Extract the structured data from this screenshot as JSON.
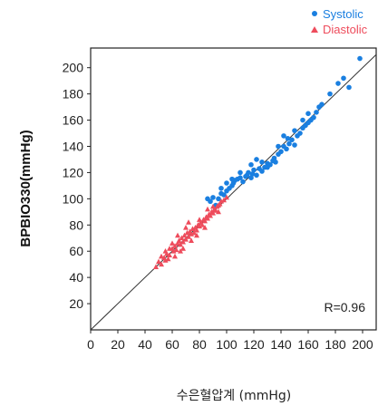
{
  "chart_data": {
    "type": "scatter",
    "xlabel": "수은혈압계 (mmHg)",
    "ylabel": "BPBIO330(mmHg)",
    "xlim": [
      0,
      210
    ],
    "ylim": [
      0,
      215
    ],
    "x_ticks": [
      "0",
      "20",
      "40",
      "60",
      "80",
      "100",
      "120",
      "140",
      "160",
      "180",
      "200"
    ],
    "y_ticks": [
      "20",
      "40",
      "60",
      "80",
      "100",
      "120",
      "140",
      "160",
      "180",
      "200"
    ],
    "annotation": "R=0.96",
    "identity_line": true,
    "grid": false,
    "legend_position": "top-right",
    "series": [
      {
        "name": "Systolic",
        "marker": "circle",
        "color": "#1a7fe0",
        "points": [
          [
            86,
            100
          ],
          [
            88,
            98
          ],
          [
            90,
            101
          ],
          [
            92,
            95
          ],
          [
            94,
            100
          ],
          [
            96,
            104
          ],
          [
            98,
            103
          ],
          [
            100,
            106
          ],
          [
            102,
            108
          ],
          [
            104,
            110
          ],
          [
            105,
            112
          ],
          [
            106,
            114
          ],
          [
            108,
            115
          ],
          [
            110,
            116
          ],
          [
            112,
            113
          ],
          [
            114,
            117
          ],
          [
            115,
            118
          ],
          [
            116,
            120
          ],
          [
            118,
            116
          ],
          [
            119,
            119
          ],
          [
            120,
            122
          ],
          [
            122,
            118
          ],
          [
            124,
            123
          ],
          [
            126,
            121
          ],
          [
            128,
            124
          ],
          [
            130,
            127
          ],
          [
            132,
            126
          ],
          [
            134,
            129
          ],
          [
            135,
            131
          ],
          [
            136,
            128
          ],
          [
            138,
            134
          ],
          [
            140,
            136
          ],
          [
            142,
            140
          ],
          [
            144,
            138
          ],
          [
            146,
            142
          ],
          [
            148,
            145
          ],
          [
            150,
            141
          ],
          [
            152,
            148
          ],
          [
            154,
            150
          ],
          [
            156,
            154
          ],
          [
            158,
            156
          ],
          [
            160,
            158
          ],
          [
            162,
            160
          ],
          [
            164,
            162
          ],
          [
            166,
            166
          ],
          [
            168,
            170
          ],
          [
            170,
            172
          ],
          [
            176,
            180
          ],
          [
            182,
            188
          ],
          [
            186,
            192
          ],
          [
            190,
            185
          ],
          [
            198,
            207
          ],
          [
            104,
            115
          ],
          [
            110,
            120
          ],
          [
            126,
            128
          ],
          [
            130,
            124
          ],
          [
            142,
            148
          ],
          [
            150,
            152
          ],
          [
            156,
            160
          ],
          [
            160,
            165
          ],
          [
            145,
            146
          ],
          [
            138,
            140
          ],
          [
            100,
            112
          ],
          [
            96,
            108
          ],
          [
            118,
            126
          ],
          [
            122,
            130
          ]
        ]
      },
      {
        "name": "Diastolic",
        "marker": "triangle",
        "color": "#ee4c5c",
        "points": [
          [
            48,
            48
          ],
          [
            50,
            52
          ],
          [
            52,
            50
          ],
          [
            54,
            55
          ],
          [
            55,
            53
          ],
          [
            56,
            58
          ],
          [
            58,
            57
          ],
          [
            60,
            62
          ],
          [
            61,
            60
          ],
          [
            62,
            64
          ],
          [
            63,
            61
          ],
          [
            64,
            66
          ],
          [
            65,
            68
          ],
          [
            66,
            65
          ],
          [
            67,
            70
          ],
          [
            68,
            67
          ],
          [
            69,
            72
          ],
          [
            70,
            69
          ],
          [
            71,
            74
          ],
          [
            72,
            71
          ],
          [
            73,
            75
          ],
          [
            74,
            73
          ],
          [
            75,
            77
          ],
          [
            76,
            74
          ],
          [
            77,
            78
          ],
          [
            78,
            76
          ],
          [
            79,
            80
          ],
          [
            80,
            79
          ],
          [
            81,
            82
          ],
          [
            82,
            80
          ],
          [
            83,
            84
          ],
          [
            84,
            83
          ],
          [
            85,
            86
          ],
          [
            86,
            85
          ],
          [
            87,
            88
          ],
          [
            88,
            87
          ],
          [
            89,
            90
          ],
          [
            90,
            89
          ],
          [
            91,
            92
          ],
          [
            92,
            91
          ],
          [
            93,
            94
          ],
          [
            94,
            95
          ],
          [
            95,
            96
          ],
          [
            96,
            98
          ],
          [
            98,
            99
          ],
          [
            100,
            101
          ],
          [
            58,
            62
          ],
          [
            60,
            66
          ],
          [
            64,
            72
          ],
          [
            66,
            60
          ],
          [
            70,
            78
          ],
          [
            72,
            82
          ],
          [
            74,
            68
          ],
          [
            78,
            72
          ],
          [
            80,
            84
          ],
          [
            84,
            78
          ],
          [
            57,
            54
          ],
          [
            62,
            56
          ],
          [
            68,
            62
          ],
          [
            90,
            94
          ],
          [
            94,
            90
          ],
          [
            55,
            60
          ],
          [
            52,
            56
          ],
          [
            86,
            92
          ]
        ]
      }
    ]
  }
}
